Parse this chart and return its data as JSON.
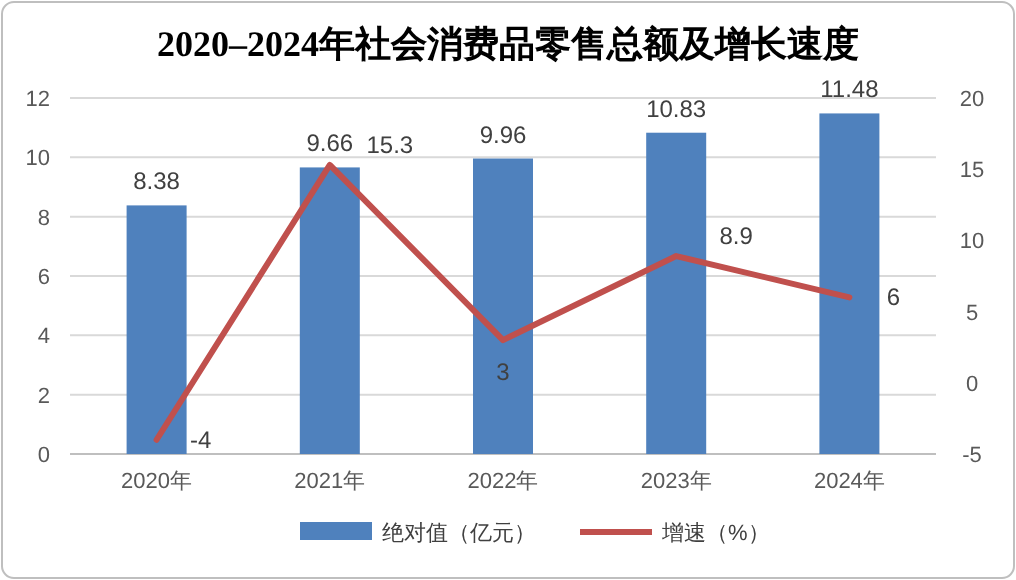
{
  "chart_data": {
    "type": "bar",
    "title": "2020–2024年社会消费品零售总额及增长速度",
    "categories": [
      "2020年",
      "2021年",
      "2022年",
      "2023年",
      "2024年"
    ],
    "series": [
      {
        "name": "绝对值（亿元）",
        "color": "#4f81bd",
        "values": [
          8.38,
          9.66,
          9.96,
          10.83,
          11.48
        ]
      },
      {
        "name": "增速（%）",
        "type": "line",
        "axis": "y2",
        "color": "#c0504d",
        "values": [
          -4,
          15.3,
          3,
          8.9,
          6
        ]
      }
    ],
    "ylim": [
      0,
      12
    ],
    "yticks": [
      0,
      2,
      4,
      6,
      8,
      10,
      12
    ],
    "y2lim": [
      -5,
      20
    ],
    "y2ticks": [
      -5,
      0,
      5,
      10,
      15,
      20
    ],
    "grid": "y",
    "legend": "bottom",
    "data_labels": true,
    "marker": "none",
    "line_style": "solid"
  }
}
